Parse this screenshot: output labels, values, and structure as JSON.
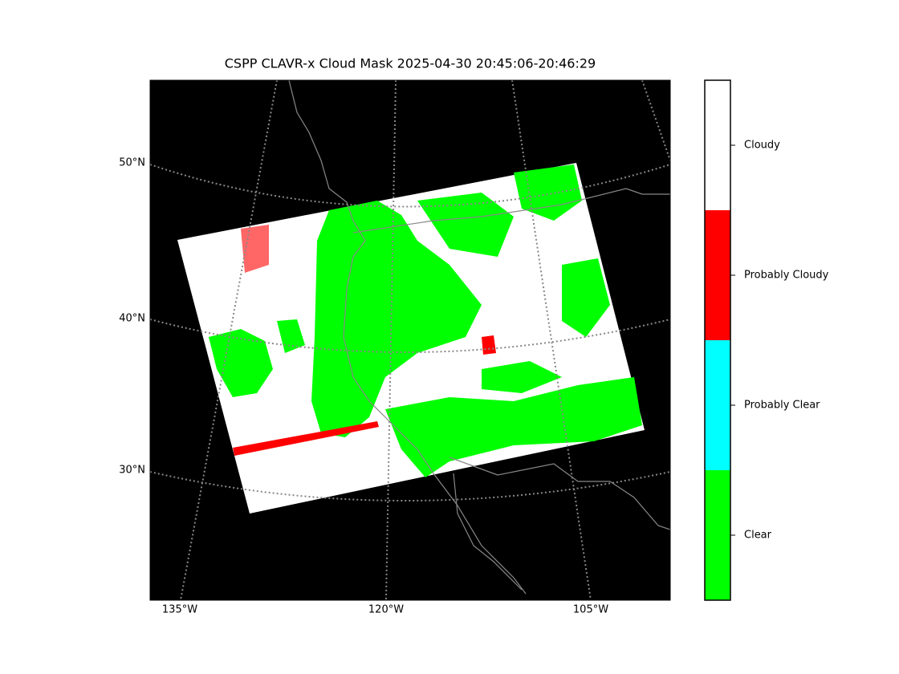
{
  "title": "CSPP CLAVR-x Cloud Mask 2025-04-30 20:45:06-20:46:29",
  "map": {
    "lat_labels": [
      "50°N",
      "40°N",
      "30°N"
    ],
    "lon_labels": [
      "135°W",
      "120°W",
      "105°W"
    ]
  },
  "colorbar": {
    "categories": [
      {
        "label": "Cloudy",
        "color": "#ffffff"
      },
      {
        "label": "Probably Cloudy",
        "color": "#ff0000"
      },
      {
        "label": "Probably Clear",
        "color": "#00ffff"
      },
      {
        "label": "Clear",
        "color": "#00ff00"
      }
    ]
  }
}
